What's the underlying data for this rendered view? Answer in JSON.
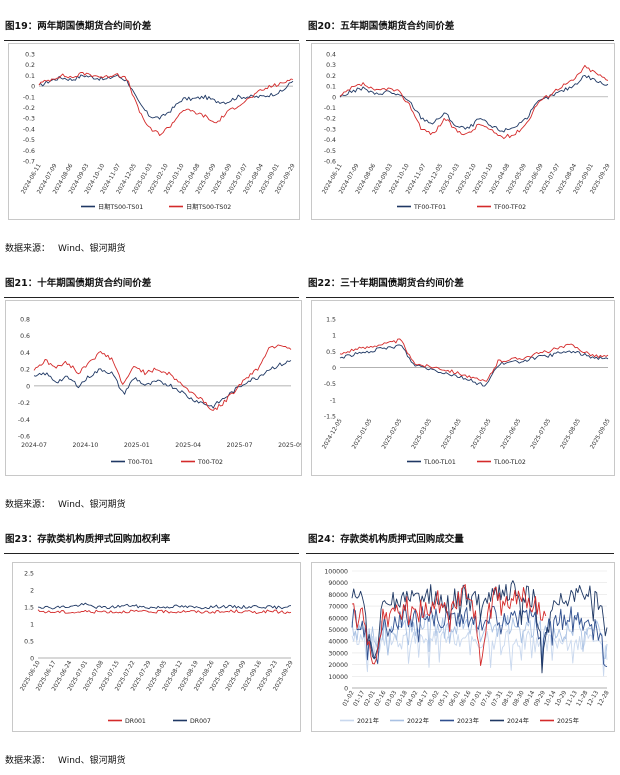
{
  "figures": [
    {
      "title": "图19：两年期国债期货合约间价差"
    },
    {
      "title": "图20：五年期国债期货合约间价差"
    },
    {
      "title": "图21：十年期国债期货合约间价差"
    },
    {
      "title": "图22：三十年期国债期货合约间价差"
    },
    {
      "title": "图23：存款类机构质押式回购加权利率"
    },
    {
      "title": "图24：存款类机构质押式回购成交量"
    }
  ],
  "source_label": "数据来源：",
  "source_text": "Wind、银河期货",
  "colors": {
    "navy": "#1f3864",
    "red": "#d42a2a",
    "mid": "#2f4f8f",
    "light": "#a9c1e3",
    "lighter": "#c9d8ee"
  },
  "chart_data": [
    {
      "type": "line",
      "ylim": [
        -0.7,
        0.3
      ],
      "yticks": [
        "0.3",
        "0.2",
        "0.1",
        "0",
        "-0.1",
        "-0.2",
        "-0.3",
        "-0.4",
        "-0.5",
        "-0.6",
        "-0.7"
      ],
      "xticks": [
        "2024-06-11",
        "2024-07-09",
        "2024-08-06",
        "2024-09-03",
        "2024-10-10",
        "2024-11-07",
        "2024-12-05",
        "2025-01-03",
        "2025-02-10",
        "2025-03-10",
        "2025-04-08",
        "2025-05-09",
        "2025-06-09",
        "2025-07-07",
        "2025-08-04",
        "2025-09-01",
        "2025-09-29"
      ],
      "series": [
        {
          "name": "日期TS00-TS01",
          "values": [
            0.0,
            0.05,
            0.08,
            0.06,
            0.1,
            0.08,
            0.06,
            0.1,
            0.05,
            -0.15,
            -0.28,
            -0.3,
            -0.22,
            -0.12,
            -0.12,
            -0.1,
            -0.14,
            -0.15,
            -0.1,
            -0.1,
            -0.1,
            -0.08,
            -0.05,
            0.05
          ]
        },
        {
          "name": "日期TS00-TS02",
          "values": [
            0.02,
            0.06,
            0.1,
            0.08,
            0.12,
            0.1,
            0.08,
            0.12,
            0.06,
            -0.22,
            -0.4,
            -0.45,
            -0.36,
            -0.22,
            -0.24,
            -0.28,
            -0.35,
            -0.25,
            -0.18,
            -0.12,
            -0.05,
            0.0,
            0.02,
            0.08
          ]
        }
      ]
    },
    {
      "type": "line",
      "ylim": [
        -0.6,
        0.4
      ],
      "yticks": [
        "0.4",
        "0.3",
        "0.2",
        "0.1",
        "0",
        "-0.1",
        "-0.2",
        "-0.3",
        "-0.4",
        "-0.5",
        "-0.6"
      ],
      "xticks": [
        "2024-06-11",
        "2024-07-09",
        "2024-08-06",
        "2024-09-03",
        "2024-10-10",
        "2024-11-07",
        "2024-12-05",
        "2025-01-03",
        "2025-02-10",
        "2025-03-10",
        "2025-04-08",
        "2025-05-09",
        "2025-06-09",
        "2025-07-07",
        "2025-08-04",
        "2025-09-01",
        "2025-09-29"
      ],
      "series": [
        {
          "name": "TF00-TF01",
          "values": [
            0.0,
            0.05,
            0.08,
            0.02,
            0.05,
            0.02,
            -0.05,
            -0.2,
            -0.25,
            -0.15,
            -0.28,
            -0.3,
            -0.2,
            -0.28,
            -0.32,
            -0.28,
            -0.2,
            -0.05,
            0.0,
            0.05,
            0.1,
            0.2,
            0.15,
            0.1
          ]
        },
        {
          "name": "TF00-TF02",
          "values": [
            0.0,
            0.08,
            0.12,
            0.05,
            0.08,
            0.05,
            -0.08,
            -0.3,
            -0.35,
            -0.2,
            -0.32,
            -0.35,
            -0.25,
            -0.32,
            -0.38,
            -0.35,
            -0.25,
            -0.05,
            0.02,
            0.1,
            0.15,
            0.28,
            0.22,
            0.15
          ]
        }
      ]
    },
    {
      "type": "line",
      "ylim": [
        -0.6,
        0.8
      ],
      "yticks": [
        "0.8",
        "0.6",
        "0.4",
        "0.2",
        "0",
        "-0.2",
        "-0.4",
        "-0.6"
      ],
      "xticks": [
        "2024-07",
        "2024-10",
        "2025-01",
        "2025-04",
        "2025-07",
        "2025-09"
      ],
      "series": [
        {
          "name": "T00-T01",
          "values": [
            0.1,
            0.15,
            0.05,
            0.1,
            0.0,
            0.12,
            0.2,
            0.15,
            -0.1,
            0.1,
            0.0,
            0.05,
            0.02,
            -0.05,
            -0.15,
            -0.2,
            -0.25,
            -0.15,
            -0.05,
            0.05,
            0.1,
            0.2,
            0.25,
            0.3
          ]
        },
        {
          "name": "T00-T02",
          "values": [
            0.2,
            0.3,
            0.22,
            0.28,
            0.15,
            0.3,
            0.4,
            0.32,
            0.0,
            0.25,
            0.15,
            0.2,
            0.15,
            0.05,
            -0.08,
            -0.15,
            -0.3,
            -0.2,
            -0.05,
            0.1,
            0.2,
            0.45,
            0.5,
            0.45
          ]
        }
      ]
    },
    {
      "type": "line",
      "ylim": [
        -1.5,
        1.5
      ],
      "yticks": [
        "1.5",
        "1",
        "0.5",
        "0",
        "-0.5",
        "-1",
        "-1.5"
      ],
      "xticks": [
        "2024-12-05",
        "2025-01-05",
        "2025-02-05",
        "2025-03-05",
        "2025-04-05",
        "2025-05-05",
        "2025-06-05",
        "2025-07-05",
        "2025-08-05",
        "2025-09-05"
      ],
      "series": [
        {
          "name": "TL00-TL01",
          "values": [
            0.3,
            0.4,
            0.45,
            0.55,
            0.6,
            0.7,
            0.1,
            0.0,
            -0.1,
            -0.2,
            -0.3,
            -0.45,
            -0.55,
            0.1,
            0.15,
            0.2,
            0.3,
            0.35,
            0.45,
            0.5,
            0.4,
            0.3,
            0.3
          ]
        },
        {
          "name": "TL00-TL02",
          "values": [
            0.4,
            0.55,
            0.6,
            0.7,
            0.75,
            0.85,
            0.15,
            0.05,
            0.0,
            -0.1,
            -0.2,
            -0.35,
            -0.45,
            0.2,
            0.25,
            0.3,
            0.4,
            0.5,
            0.6,
            0.7,
            0.5,
            0.35,
            0.35
          ]
        }
      ]
    },
    {
      "type": "line",
      "ylim": [
        0,
        2.5
      ],
      "yticks": [
        "2.5",
        "2",
        "1.5",
        "1",
        "0.5",
        "0"
      ],
      "xticks": [
        "2025-06-10",
        "2025-06-17",
        "2025-06-24",
        "2025-07-01",
        "2025-07-08",
        "2025-07-15",
        "2025-07-22",
        "2025-07-29",
        "2025-08-05",
        "2025-08-12",
        "2025-08-19",
        "2025-08-26",
        "2025-09-02",
        "2025-09-09",
        "2025-09-16",
        "2025-09-23",
        "2025-09-29"
      ],
      "series": [
        {
          "name": "DR001",
          "values": [
            1.38,
            1.35,
            1.36,
            1.34,
            1.37,
            1.36,
            1.37,
            1.35,
            1.38,
            1.36,
            1.35,
            1.37,
            1.36,
            1.38,
            1.35,
            1.36,
            1.35,
            1.38,
            1.36,
            1.35,
            1.37,
            1.36,
            1.32
          ]
        },
        {
          "name": "DR007",
          "values": [
            1.52,
            1.48,
            1.5,
            1.52,
            1.58,
            1.5,
            1.48,
            1.52,
            1.55,
            1.5,
            1.48,
            1.5,
            1.52,
            1.5,
            1.48,
            1.5,
            1.52,
            1.5,
            1.5,
            1.52,
            1.5,
            1.48,
            1.55
          ]
        }
      ]
    },
    {
      "type": "line",
      "ylim": [
        0,
        100000
      ],
      "yticks": [
        "100000",
        "90000",
        "80000",
        "70000",
        "60000",
        "50000",
        "40000",
        "30000",
        "20000",
        "10000",
        "0"
      ],
      "xticks": [
        "01-02",
        "01-17",
        "02-01",
        "02-16",
        "03-03",
        "03-18",
        "04-02",
        "04-17",
        "05-02",
        "05-17",
        "06-01",
        "06-16",
        "07-01",
        "07-16",
        "07-31",
        "08-15",
        "08-30",
        "09-14",
        "09-29",
        "10-14",
        "10-29",
        "11-13",
        "11-28",
        "12-13",
        "12-28"
      ],
      "series": [
        {
          "name": "2021年",
          "values": [
            45000,
            40000,
            35000,
            40000,
            38000,
            42000,
            40000,
            38000,
            42000,
            40000,
            45000,
            40000,
            42000,
            40000,
            43000,
            40000,
            42000,
            40000,
            38000,
            42000,
            40000,
            41000,
            42000,
            40000,
            25000
          ]
        },
        {
          "name": "2022年",
          "values": [
            52000,
            50000,
            45000,
            50000,
            48000,
            52000,
            50000,
            55000,
            52000,
            50000,
            55000,
            52000,
            50000,
            53000,
            52000,
            54000,
            50000,
            52000,
            48000,
            52000,
            50000,
            55000,
            52000,
            50000,
            30000
          ]
        },
        {
          "name": "2023年",
          "values": [
            60000,
            55000,
            25000,
            58000,
            55000,
            62000,
            58000,
            65000,
            60000,
            58000,
            62000,
            60000,
            55000,
            62000,
            60000,
            65000,
            58000,
            62000,
            40000,
            60000,
            58000,
            62000,
            60000,
            55000,
            20000
          ]
        },
        {
          "name": "2024年",
          "values": [
            80000,
            75000,
            20000,
            78000,
            72000,
            80000,
            75000,
            82000,
            78000,
            70000,
            80000,
            78000,
            75000,
            82000,
            80000,
            85000,
            78000,
            80000,
            30000,
            78000,
            75000,
            82000,
            80000,
            78000,
            45000
          ]
        },
        {
          "name": "2025年",
          "values": [
            70000,
            65000,
            15000,
            68000,
            62000,
            70000,
            65000,
            72000,
            75000,
            68000,
            80000,
            82000,
            30000,
            78000,
            80000,
            75000,
            78000,
            72000,
            60000
          ]
        }
      ]
    }
  ]
}
